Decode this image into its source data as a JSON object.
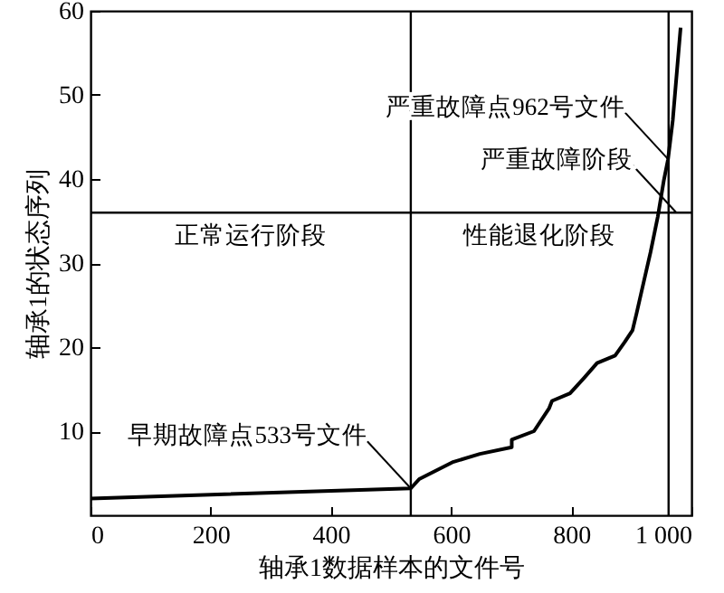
{
  "chart_data": {
    "type": "line",
    "xlabel": "轴承1数据样本的文件号",
    "ylabel": "轴承1的状态序列",
    "x": [
      0,
      533,
      547,
      602,
      648,
      701,
      701,
      738,
      763,
      768,
      798,
      821,
      843,
      873,
      889,
      902,
      909,
      916,
      932,
      944,
      954,
      961,
      969,
      982
    ],
    "series": [
      {
        "color": "#000000",
        "values": [
          2.0,
          3.2,
          4.3,
          6.3,
          7.3,
          8.1,
          9.0,
          10.0,
          12.7,
          13.6,
          14.5,
          16.3,
          18.1,
          19.0,
          20.6,
          22.0,
          24.1,
          26.3,
          31.3,
          35.5,
          39.8,
          42.3,
          47.0,
          58.0
        ]
      }
    ],
    "xlim": [
      0,
      1000
    ],
    "ylim": [
      0,
      60
    ],
    "xticks": [
      0,
      200,
      400,
      600,
      800,
      {
        "value": 1000,
        "label": "1 000"
      }
    ],
    "yticks": [
      10,
      20,
      30,
      40,
      50,
      60
    ],
    "grid": false,
    "marker": "none",
    "line_style": "solid",
    "ref_lines": [
      {
        "axis": "x",
        "value": 533,
        "label": null
      },
      {
        "axis": "x",
        "value": 962,
        "label": null
      },
      {
        "axis": "y",
        "value": 36,
        "label": null
      }
    ],
    "annotations": [
      {
        "text": "早期故障点533号文件",
        "x": 533,
        "y": 3.2
      },
      {
        "text": "严重故障点962号文件",
        "x": 962,
        "y": 42.3
      },
      {
        "text": "严重故障阶段",
        "x": 975,
        "y": 36
      },
      "正常运行阶段",
      "性能退化阶段"
    ]
  }
}
